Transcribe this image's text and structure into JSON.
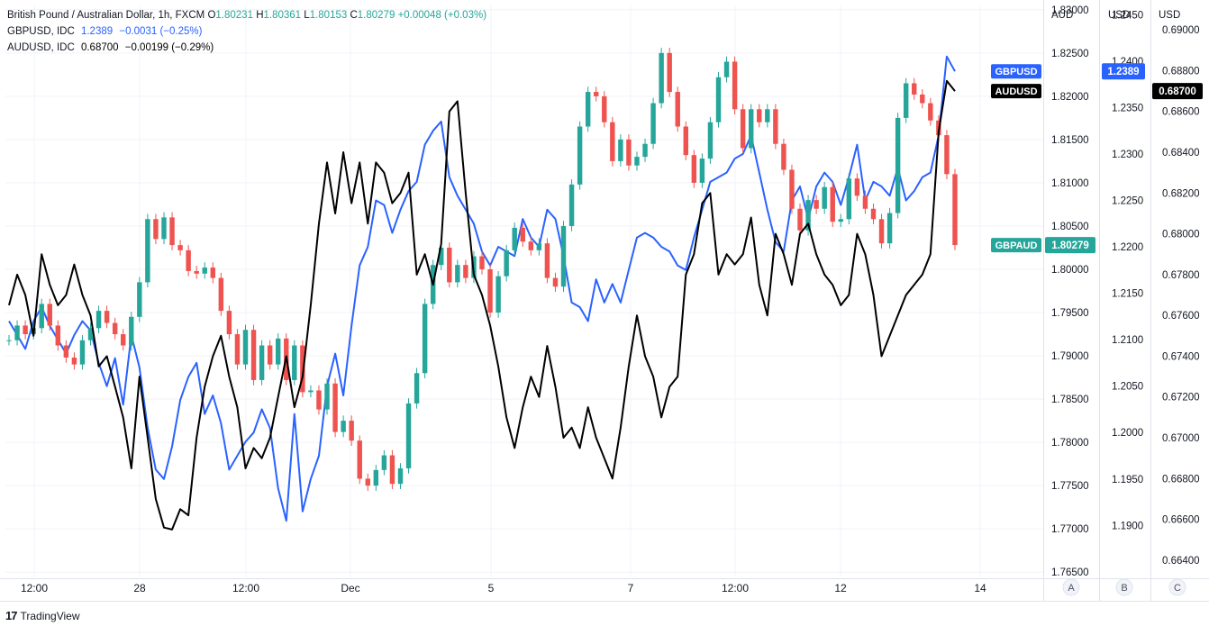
{
  "legend": {
    "main": {
      "name": "British Pound / Australian Dollar, 1h, FXCM",
      "o_label": "O",
      "o": "1.80231",
      "h_label": "H",
      "h": "1.80361",
      "l_label": "L",
      "l": "1.80153",
      "c_label": "C",
      "c": "1.80279",
      "change": "+0.00048 (+0.03%)",
      "color": "#26a69a"
    },
    "gbpusd": {
      "name": "GBPUSD, IDC",
      "last": "1.2389",
      "change": "−0.0031 (−0.25%)",
      "color": "#2962ff"
    },
    "audusd": {
      "name": "AUDUSD, IDC",
      "last": "0.68700",
      "change": "−0.00199 (−0.29%)",
      "color": "#000000"
    }
  },
  "footer": {
    "logo": "17",
    "brand": "TradingView"
  },
  "chart_data": {
    "type": "line",
    "x_tick_labels": [
      "12:00",
      "28",
      "12:00",
      "Dec",
      "5",
      "7",
      "12:00",
      "12",
      "14"
    ],
    "scale_letters": [
      "A",
      "B",
      "C"
    ],
    "axes": [
      {
        "id": "A",
        "unit": "AUD",
        "range": [
          1.7645,
          1.8305
        ],
        "tick_labels": [
          "1.83000",
          "1.82500",
          "1.82000",
          "1.81500",
          "1.81000",
          "1.80500",
          "1.80000",
          "1.79500",
          "1.79000",
          "1.78500",
          "1.78000",
          "1.77500",
          "1.77000",
          "1.76500"
        ]
      },
      {
        "id": "B",
        "unit": "USD",
        "range": [
          1.1845,
          1.246
        ],
        "tick_labels": [
          "1.2450",
          "1.2400",
          "1.2350",
          "1.2300",
          "1.2250",
          "1.2200",
          "1.2150",
          "1.2100",
          "1.2050",
          "1.2000",
          "1.1950",
          "1.1900"
        ]
      },
      {
        "id": "C",
        "unit": "USD",
        "range": [
          0.6632,
          0.6912
        ],
        "tick_labels": [
          "0.69000",
          "0.68800",
          "0.68600",
          "0.68400",
          "0.68200",
          "0.68000",
          "0.67800",
          "0.67600",
          "0.67400",
          "0.67200",
          "0.67000",
          "0.66800",
          "0.66600",
          "0.66400"
        ]
      }
    ],
    "price_tags": [
      {
        "label": "GBPUSD",
        "value": "1.2389",
        "color": "#2962ff"
      },
      {
        "label": "AUDUSD",
        "value": "0.68700",
        "color": "#000000"
      },
      {
        "label": "GBPAUD",
        "value": "1.80279",
        "color": "#26a69a"
      }
    ],
    "grid": true,
    "series": [
      {
        "name": "GBPAUD",
        "type": "candlestick",
        "axis": "A",
        "up_color": "#26a69a",
        "down_color": "#ef5350",
        "values": [
          1.7918,
          1.7935,
          1.7925,
          1.7932,
          1.796,
          1.7935,
          1.7912,
          1.7898,
          1.789,
          1.7918,
          1.7932,
          1.7952,
          1.7938,
          1.7925,
          1.7912,
          1.7945,
          1.7985,
          1.8058,
          1.8035,
          1.806,
          1.8028,
          1.8022,
          1.7998,
          1.7995,
          1.8002,
          1.799,
          1.7952,
          1.7925,
          1.789,
          1.793,
          1.7872,
          1.7912,
          1.789,
          1.792,
          1.7872,
          1.7912,
          1.7858,
          1.786,
          1.7838,
          1.7868,
          1.7812,
          1.7825,
          1.7802,
          1.7758,
          1.775,
          1.7768,
          1.7785,
          1.7752,
          1.777,
          1.7845,
          1.788,
          1.796,
          1.8005,
          1.8025,
          1.7985,
          1.8005,
          1.799,
          1.8015,
          1.8,
          1.795,
          1.7992,
          1.8022,
          1.8048,
          1.8032,
          1.8022,
          1.803,
          1.799,
          1.798,
          1.805,
          1.8098,
          1.8165,
          1.8205,
          1.82,
          1.817,
          1.8125,
          1.815,
          1.812,
          1.813,
          1.8145,
          1.8192,
          1.825,
          1.8205,
          1.8165,
          1.8132,
          1.81,
          1.8128,
          1.817,
          1.8222,
          1.824,
          1.8185,
          1.814,
          1.8185,
          1.817,
          1.8185,
          1.8145,
          1.8115,
          1.807,
          1.8045,
          1.808,
          1.807,
          1.8095,
          1.8055,
          1.8058,
          1.8105,
          1.8085,
          1.807,
          1.8058,
          1.803,
          1.8065,
          1.8175,
          1.8215,
          1.8202,
          1.8192,
          1.8172,
          1.8155,
          1.811,
          1.8028
        ]
      },
      {
        "name": "GBPUSD",
        "axis": "B",
        "color": "#2962ff",
        "values": [
          1.212,
          1.2105,
          1.209,
          1.212,
          1.2135,
          1.2115,
          1.21,
          1.2085,
          1.2105,
          1.212,
          1.211,
          1.2075,
          1.205,
          1.208,
          1.203,
          1.2105,
          1.207,
          1.2005,
          1.196,
          1.195,
          1.1985,
          1.2035,
          1.206,
          1.2075,
          1.202,
          1.204,
          1.201,
          1.196,
          1.1975,
          1.199,
          1.2,
          1.2025,
          1.2005,
          1.194,
          1.1905,
          1.202,
          1.1915,
          1.195,
          1.1975,
          1.205,
          1.2085,
          1.204,
          1.2115,
          1.218,
          1.22,
          1.225,
          1.2245,
          1.2215,
          1.224,
          1.226,
          1.227,
          1.231,
          1.2325,
          1.2335,
          1.2275,
          1.2255,
          1.224,
          1.2225,
          1.2195,
          1.218,
          1.22,
          1.2195,
          1.219,
          1.223,
          1.221,
          1.22,
          1.224,
          1.223,
          1.219,
          1.214,
          1.2135,
          1.212,
          1.2165,
          1.214,
          1.216,
          1.214,
          1.2175,
          1.221,
          1.2215,
          1.221,
          1.22,
          1.2195,
          1.218,
          1.2175,
          1.221,
          1.224,
          1.227,
          1.2275,
          1.228,
          1.2295,
          1.23,
          1.232,
          1.228,
          1.224,
          1.2205,
          1.2195,
          1.225,
          1.2265,
          1.223,
          1.2265,
          1.228,
          1.227,
          1.2245,
          1.2275,
          1.231,
          1.225,
          1.227,
          1.2265,
          1.2255,
          1.2285,
          1.225,
          1.226,
          1.2275,
          1.228,
          1.232,
          1.2405,
          1.2389
        ]
      },
      {
        "name": "AUDUSD",
        "axis": "C",
        "color": "#000000",
        "values": [
          0.6765,
          0.678,
          0.677,
          0.675,
          0.679,
          0.6775,
          0.6765,
          0.677,
          0.6785,
          0.677,
          0.676,
          0.6735,
          0.674,
          0.6725,
          0.671,
          0.6685,
          0.673,
          0.67,
          0.667,
          0.6656,
          0.6655,
          0.6665,
          0.6662,
          0.67,
          0.6725,
          0.674,
          0.675,
          0.673,
          0.6715,
          0.6685,
          0.6695,
          0.669,
          0.67,
          0.672,
          0.674,
          0.6715,
          0.673,
          0.6765,
          0.6805,
          0.6835,
          0.681,
          0.684,
          0.6815,
          0.6835,
          0.6805,
          0.6835,
          0.683,
          0.6815,
          0.682,
          0.683,
          0.678,
          0.679,
          0.6775,
          0.6795,
          0.686,
          0.6865,
          0.682,
          0.678,
          0.677,
          0.6755,
          0.6735,
          0.671,
          0.6695,
          0.6715,
          0.673,
          0.672,
          0.6745,
          0.6725,
          0.67,
          0.6705,
          0.6695,
          0.6715,
          0.67,
          0.669,
          0.668,
          0.6705,
          0.6735,
          0.676,
          0.674,
          0.673,
          0.671,
          0.6725,
          0.673,
          0.678,
          0.679,
          0.6815,
          0.682,
          0.678,
          0.679,
          0.6785,
          0.679,
          0.6808,
          0.6775,
          0.676,
          0.68,
          0.679,
          0.6775,
          0.68,
          0.6805,
          0.679,
          0.678,
          0.6775,
          0.6765,
          0.677,
          0.68,
          0.679,
          0.677,
          0.674,
          0.675,
          0.676,
          0.677,
          0.6775,
          0.678,
          0.679,
          0.685,
          0.6875,
          0.687
        ]
      }
    ]
  }
}
